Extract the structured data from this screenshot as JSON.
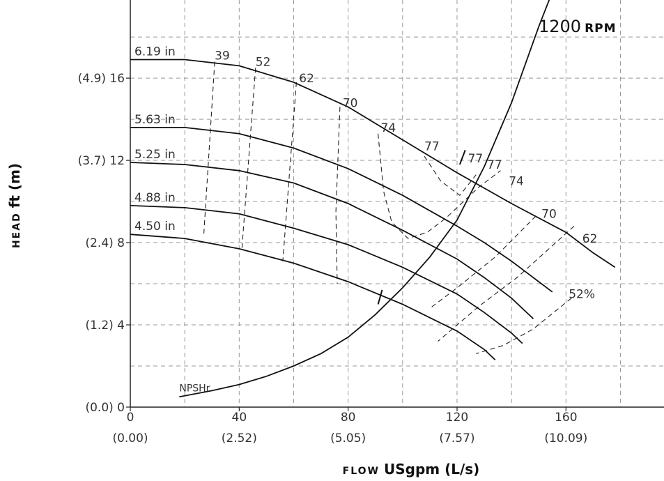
{
  "chart_data": {
    "type": "line",
    "title": "",
    "speed_label": {
      "number": "1200",
      "unit": "RPM"
    },
    "xlabel": {
      "prefix": "FLOW",
      "main": "USgpm (L/s)"
    },
    "ylabel": {
      "prefix": "HEAD",
      "main": "ft (m)"
    },
    "xlim": [
      0,
      196
    ],
    "ylim": [
      0,
      19.8
    ],
    "grid": true,
    "x_ticks": [
      {
        "value": 0,
        "label": "0",
        "metric": "(0.00)"
      },
      {
        "value": 40,
        "label": "40",
        "metric": "(2.52)"
      },
      {
        "value": 80,
        "label": "80",
        "metric": "(5.05)"
      },
      {
        "value": 120,
        "label": "120",
        "metric": "(7.57)"
      },
      {
        "value": 160,
        "label": "160",
        "metric": "(10.09)"
      }
    ],
    "y_ticks": [
      {
        "value": 0,
        "label": "(0.0) 0"
      },
      {
        "value": 4,
        "label": "(1.2) 4"
      },
      {
        "value": 8,
        "label": "(2.4) 8"
      },
      {
        "value": 12,
        "label": "(3.7) 12"
      },
      {
        "value": 16,
        "label": "(4.9) 16"
      }
    ],
    "series": [
      {
        "name": "6.19 in",
        "points": [
          [
            0,
            16.9
          ],
          [
            20,
            16.9
          ],
          [
            40,
            16.6
          ],
          [
            60,
            15.8
          ],
          [
            80,
            14.6
          ],
          [
            100,
            13.0
          ],
          [
            120,
            11.4
          ],
          [
            140,
            9.9
          ],
          [
            160,
            8.5
          ],
          [
            170,
            7.5
          ],
          [
            178,
            6.8
          ]
        ]
      },
      {
        "name": "5.63 in",
        "points": [
          [
            0,
            13.6
          ],
          [
            20,
            13.6
          ],
          [
            40,
            13.3
          ],
          [
            60,
            12.6
          ],
          [
            80,
            11.6
          ],
          [
            100,
            10.3
          ],
          [
            120,
            8.8
          ],
          [
            130,
            8.0
          ],
          [
            140,
            7.1
          ],
          [
            150,
            6.1
          ],
          [
            155,
            5.6
          ]
        ]
      },
      {
        "name": "5.25 in",
        "points": [
          [
            0,
            11.9
          ],
          [
            20,
            11.8
          ],
          [
            40,
            11.5
          ],
          [
            60,
            10.9
          ],
          [
            80,
            9.9
          ],
          [
            100,
            8.6
          ],
          [
            120,
            7.2
          ],
          [
            130,
            6.3
          ],
          [
            140,
            5.3
          ],
          [
            148,
            4.3
          ]
        ]
      },
      {
        "name": "4.88 in",
        "points": [
          [
            0,
            9.8
          ],
          [
            20,
            9.7
          ],
          [
            40,
            9.4
          ],
          [
            60,
            8.7
          ],
          [
            80,
            7.9
          ],
          [
            100,
            6.8
          ],
          [
            120,
            5.5
          ],
          [
            130,
            4.6
          ],
          [
            140,
            3.6
          ],
          [
            144,
            3.1
          ]
        ]
      },
      {
        "name": "4.50 in",
        "points": [
          [
            0,
            8.4
          ],
          [
            20,
            8.2
          ],
          [
            40,
            7.7
          ],
          [
            60,
            7.0
          ],
          [
            80,
            6.1
          ],
          [
            100,
            5.0
          ],
          [
            120,
            3.7
          ],
          [
            130,
            2.8
          ],
          [
            134,
            2.3
          ]
        ]
      }
    ],
    "system_curve": {
      "name": "NPSHr",
      "points": [
        [
          18,
          0.5
        ],
        [
          30,
          0.8
        ],
        [
          40,
          1.1
        ],
        [
          50,
          1.5
        ],
        [
          60,
          2.0
        ],
        [
          70,
          2.6
        ],
        [
          80,
          3.4
        ],
        [
          90,
          4.5
        ],
        [
          100,
          5.8
        ],
        [
          110,
          7.3
        ],
        [
          120,
          9.1
        ],
        [
          130,
          11.7
        ],
        [
          140,
          14.8
        ],
        [
          150,
          18.5
        ],
        [
          155,
          20.2
        ]
      ]
    },
    "efficiency_curves": [
      {
        "label": "39",
        "label_at": [
          31,
          16.9
        ],
        "points": [
          [
            31,
            16.8
          ],
          [
            27,
            8.4
          ]
        ]
      },
      {
        "label": "52",
        "label_at": [
          46,
          16.6
        ],
        "points": [
          [
            46,
            16.5
          ],
          [
            41,
            7.7
          ]
        ]
      },
      {
        "label": "62",
        "label_at": [
          62,
          15.8
        ],
        "points": [
          [
            61,
            15.8
          ],
          [
            56,
            7.1
          ]
        ]
      },
      {
        "label": "70",
        "label_at": [
          78,
          14.6
        ],
        "points": [
          [
            77,
            14.6
          ],
          [
            75.5,
            9.5
          ],
          [
            76,
            6.0
          ]
        ]
      },
      {
        "label": "74",
        "label_at": [
          92,
          13.4
        ],
        "points": [
          [
            91,
            13.3
          ],
          [
            93,
            10.5
          ],
          [
            96,
            9.0
          ],
          [
            102,
            8.2
          ],
          [
            109,
            8.5
          ],
          [
            116,
            9.2
          ],
          [
            128,
            10.7
          ],
          [
            136,
            11.5
          ]
        ]
      },
      {
        "label": "77",
        "label_at": [
          108,
          12.5
        ],
        "points": [
          [
            108,
            12.2
          ],
          [
            114,
            11.0
          ],
          [
            121,
            10.3
          ],
          [
            127,
            11.3
          ]
        ]
      },
      {
        "label": "77",
        "label_at": [
          124,
          11.9
        ],
        "points": []
      },
      {
        "label": "77",
        "label_at": [
          131,
          11.6
        ],
        "points": []
      },
      {
        "label": "74",
        "label_at": [
          139,
          10.8
        ],
        "points": []
      },
      {
        "label": "70",
        "label_at": [
          151,
          9.2
        ],
        "points": [
          [
            149,
            9.3
          ],
          [
            134,
            7.3
          ],
          [
            120,
            5.8
          ],
          [
            110,
            4.8
          ]
        ]
      },
      {
        "label": "62",
        "label_at": [
          166,
          8.0
        ],
        "points": [
          [
            163,
            8.8
          ],
          [
            142,
            6.3
          ],
          [
            128,
            4.9
          ],
          [
            113,
            3.2
          ]
        ]
      },
      {
        "label": "52%",
        "label_at": [
          161,
          5.3
        ],
        "points": [
          [
            162,
            5.3
          ],
          [
            148,
            3.8
          ],
          [
            137,
            3.0
          ],
          [
            127,
            2.6
          ]
        ]
      }
    ],
    "cut_marks": [
      {
        "points": [
          [
            91,
            5.0
          ],
          [
            92.5,
            5.7
          ]
        ]
      },
      {
        "points": [
          [
            121,
            11.8
          ],
          [
            123,
            12.5
          ]
        ]
      }
    ]
  }
}
